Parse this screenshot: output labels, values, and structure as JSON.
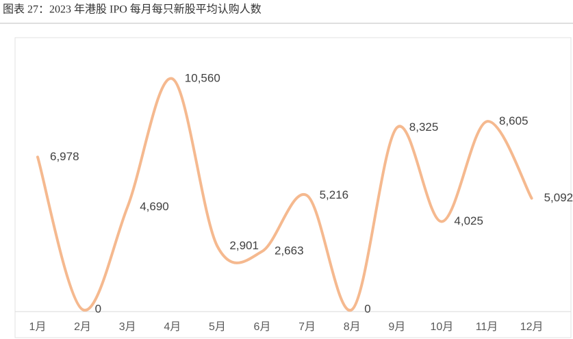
{
  "chart_data": {
    "type": "line",
    "title": "图表 27：2023 年港股 IPO 每月每只新股平均认购人数",
    "categories": [
      "1月",
      "2月",
      "3月",
      "4月",
      "5月",
      "6月",
      "7月",
      "8月",
      "9月",
      "10月",
      "11月",
      "12月"
    ],
    "values": [
      6978,
      0,
      4690,
      10560,
      2901,
      2663,
      5216,
      0,
      8325,
      4025,
      8605,
      5092
    ],
    "value_labels": [
      "6,978",
      "0",
      "4,690",
      "10,560",
      "2,901",
      "2,663",
      "5,216",
      "0",
      "8,325",
      "4,025",
      "8,605",
      "5,092"
    ],
    "color": "#f5b98f"
  }
}
